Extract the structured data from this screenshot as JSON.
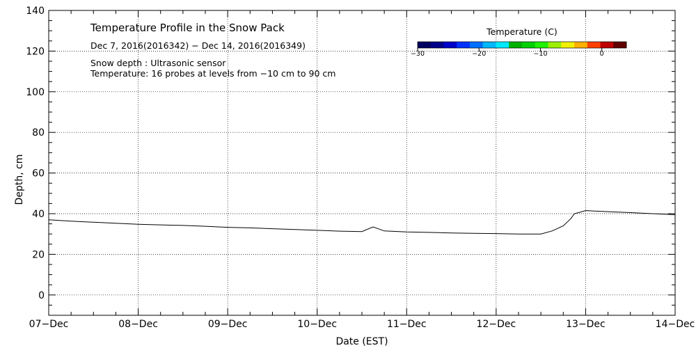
{
  "chart_data": {
    "type": "line",
    "title": "Temperature Profile in the Snow Pack",
    "subtitle": "Dec  7, 2016(2016342) − Dec 14, 2016(2016349)",
    "annotations": [
      "Snow depth : Ultrasonic sensor",
      "Temperature: 16 probes at levels from −10 cm to 90 cm"
    ],
    "xlabel": "Date (EST)",
    "ylabel": "Depth, cm",
    "xlim": [
      "2016-12-07",
      "2016-12-14"
    ],
    "ylim": [
      -10,
      140
    ],
    "x_tick_labels": [
      "07−Dec",
      "08−Dec",
      "09−Dec",
      "10−Dec",
      "11−Dec",
      "12−Dec",
      "13−Dec",
      "14−Dec"
    ],
    "y_tick_labels": [
      "0",
      "20",
      "40",
      "60",
      "80",
      "100",
      "120",
      "140"
    ],
    "y_ticks": [
      0,
      20,
      40,
      60,
      80,
      100,
      120,
      140
    ],
    "grid": true,
    "series": [
      {
        "color": "#000000",
        "x": [
          "2016-12-07T00:00",
          "2016-12-07T06:00",
          "2016-12-07T12:00",
          "2016-12-07T18:00",
          "2016-12-08T00:00",
          "2016-12-08T06:00",
          "2016-12-08T12:00",
          "2016-12-08T18:00",
          "2016-12-09T00:00",
          "2016-12-09T06:00",
          "2016-12-09T12:00",
          "2016-12-09T18:00",
          "2016-12-10T00:00",
          "2016-12-10T06:00",
          "2016-12-10T12:00",
          "2016-12-10T15:00",
          "2016-12-10T18:00",
          "2016-12-11T00:00",
          "2016-12-11T06:00",
          "2016-12-11T12:00",
          "2016-12-11T18:00",
          "2016-12-12T00:00",
          "2016-12-12T06:00",
          "2016-12-12T12:00",
          "2016-12-12T15:00",
          "2016-12-12T18:00",
          "2016-12-12T20:00",
          "2016-12-12T21:00",
          "2016-12-13T00:00",
          "2016-12-13T06:00",
          "2016-12-13T12:00",
          "2016-12-13T18:00",
          "2016-12-14T00:00"
        ],
        "y": [
          37,
          36.3,
          35.8,
          35.3,
          34.8,
          34.5,
          34.2,
          33.8,
          33.3,
          33.0,
          32.6,
          32.2,
          31.8,
          31.4,
          31.2,
          33.5,
          31.5,
          31.0,
          30.8,
          30.5,
          30.3,
          30.2,
          30.0,
          30.0,
          31.5,
          34.0,
          37.5,
          40.0,
          41.5,
          41.0,
          40.5,
          40.0,
          39.5
        ]
      }
    ],
    "colorbar": {
      "title": "Temperature (C)",
      "min": -30,
      "max": 4,
      "tick_values": [
        -30,
        -20,
        -10,
        0
      ],
      "tick_labels": [
        "−30",
        "−20",
        "−10",
        "0"
      ],
      "colors": [
        "#000060",
        "#00008a",
        "#0000c8",
        "#0030ff",
        "#0070ff",
        "#00b8ff",
        "#00e8ff",
        "#00b000",
        "#00d000",
        "#20f000",
        "#9af000",
        "#f0f000",
        "#ffb000",
        "#ff4000",
        "#c00000",
        "#600000"
      ]
    }
  }
}
